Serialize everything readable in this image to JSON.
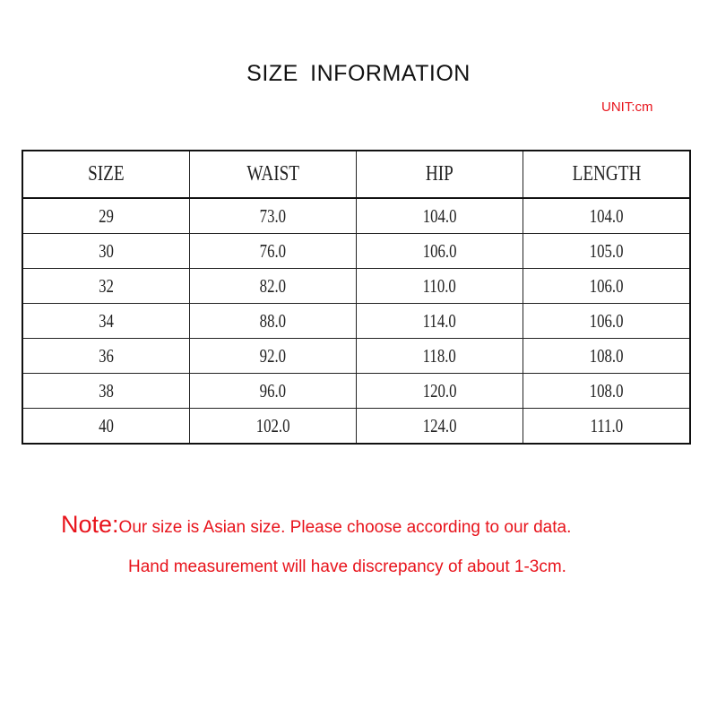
{
  "title": "SIZE  INFORMATION",
  "unit": "UNIT:cm",
  "table": {
    "headers": [
      "SIZE",
      "WAIST",
      "HIP",
      "LENGTH"
    ],
    "rows": [
      [
        "29",
        "73.0",
        "104.0",
        "104.0"
      ],
      [
        "30",
        "76.0",
        "106.0",
        "105.0"
      ],
      [
        "32",
        "82.0",
        "110.0",
        "106.0"
      ],
      [
        "34",
        "88.0",
        "114.0",
        "106.0"
      ],
      [
        "36",
        "92.0",
        "118.0",
        "108.0"
      ],
      [
        "38",
        "96.0",
        "120.0",
        "108.0"
      ],
      [
        "40",
        "102.0",
        "124.0",
        "111.0"
      ]
    ]
  },
  "note": {
    "label": "Note:",
    "line1": "Our size is Asian size. Please choose according to our data.",
    "line2": "Hand measurement will have discrepancy of about 1-3cm."
  },
  "colors": {
    "accent": "#e8141c",
    "text": "#111111"
  }
}
